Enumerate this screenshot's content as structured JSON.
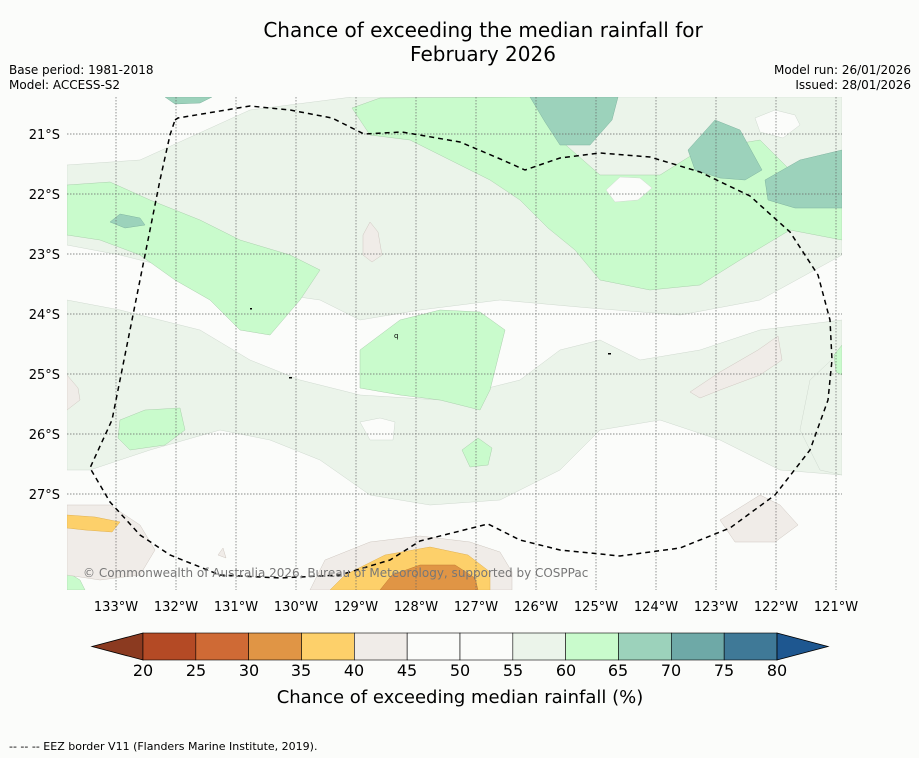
{
  "title_line1": "Chance of exceeding the median rainfall for",
  "title_line2": "February 2026",
  "base_period": "Base period: 1981-2018",
  "model": "Model: ACCESS-S2",
  "model_run": "Model run: 26/01/2026",
  "issued": "Issued: 28/01/2026",
  "copyright": "© Commonwealth of Australia 2026, Bureau of Meteorology, supported by COSPPac",
  "lat_labels": [
    "21°S",
    "22°S",
    "23°S",
    "24°S",
    "25°S",
    "26°S",
    "27°S"
  ],
  "lon_labels": [
    "133°W",
    "132°W",
    "131°W",
    "130°W",
    "129°W",
    "128°W",
    "127°W",
    "126°W",
    "125°W",
    "124°W",
    "123°W",
    "122°W",
    "121°W"
  ],
  "colorbar": {
    "ticks": [
      "20",
      "25",
      "30",
      "35",
      "40",
      "45",
      "50",
      "55",
      "60",
      "65",
      "70",
      "75",
      "80"
    ],
    "colors": [
      "#b44a25",
      "#cf6a35",
      "#e09545",
      "#fdd06a",
      "#f0ece8",
      "#fbfcfa",
      "#fbfcfa",
      "#ebf4ea",
      "#c9fbcc",
      "#9cd2bb",
      "#6ea9a7",
      "#3f7997"
    ],
    "under_color": "#8b3a20",
    "over_color": "#1e5790",
    "label": "Chance of exceeding median rainfall (%)"
  },
  "legend_note": "--  --  -- EEZ border V11 (Flanders Marine Institute, 2019)."
}
